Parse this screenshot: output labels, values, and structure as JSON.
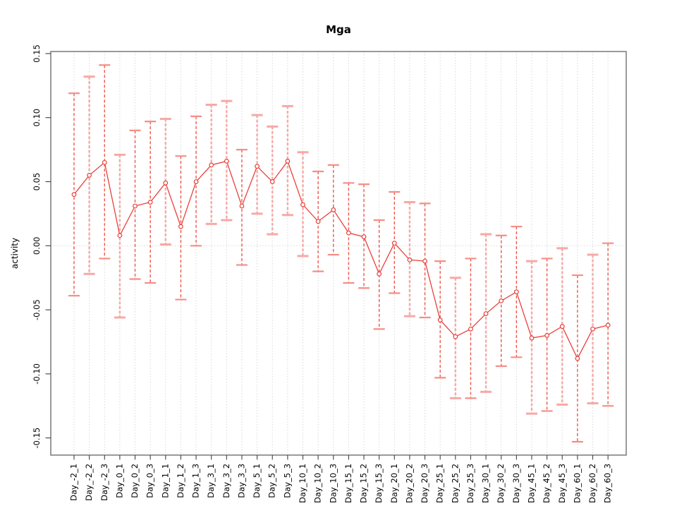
{
  "page": {
    "background": "#ffffff"
  },
  "chart_data": {
    "type": "line",
    "title": "Mga",
    "xlabel": "",
    "ylabel": "activity",
    "ylim": [
      -0.165,
      0.152
    ],
    "yticks": [
      0.15,
      0.1,
      0.05,
      0.0,
      -0.05,
      -0.1,
      -0.15
    ],
    "grid": "light dotted vertical gridline at every category; light dotted horizontal line at y=0",
    "legend": "none",
    "marker": "open-circle",
    "categories": [
      "Day_-2_1",
      "Day_-2_2",
      "Day_-2_3",
      "Day_0_1",
      "Day_0_2",
      "Day_0_3",
      "Day_1_1",
      "Day_1_2",
      "Day_1_3",
      "Day_3_1",
      "Day_3_2",
      "Day_3_3",
      "Day_5_1",
      "Day_5_2",
      "Day_5_3",
      "Day_10_1",
      "Day_10_2",
      "Day_10_3",
      "Day_15_1",
      "Day_15_2",
      "Day_15_3",
      "Day_20_1",
      "Day_20_2",
      "Day_20_3",
      "Day_25_1",
      "Day_25_2",
      "Day_25_3",
      "Day_30_1",
      "Day_30_2",
      "Day_30_3",
      "Day_45_1",
      "Day_45_2",
      "Day_45_3",
      "Day_60_1",
      "Day_60_2",
      "Day_60_3"
    ],
    "series": [
      {
        "name": "activity",
        "values": [
          0.04,
          0.055,
          0.065,
          0.008,
          0.031,
          0.034,
          0.049,
          0.015,
          0.05,
          0.063,
          0.066,
          0.031,
          0.062,
          0.05,
          0.066,
          0.032,
          0.019,
          0.028,
          0.01,
          0.007,
          -0.022,
          0.002,
          -0.011,
          -0.012,
          -0.058,
          -0.071,
          -0.065,
          -0.053,
          -0.043,
          -0.036,
          -0.072,
          -0.07,
          -0.063,
          -0.088,
          -0.065,
          -0.062
        ],
        "upper": [
          0.119,
          0.132,
          0.141,
          0.071,
          0.09,
          0.097,
          0.099,
          0.07,
          0.101,
          0.11,
          0.113,
          0.075,
          0.102,
          0.093,
          0.109,
          0.073,
          0.058,
          0.063,
          0.049,
          0.048,
          0.02,
          0.042,
          0.034,
          0.033,
          -0.012,
          -0.025,
          -0.01,
          0.009,
          0.008,
          0.015,
          -0.012,
          -0.01,
          -0.002,
          -0.023,
          -0.007,
          0.002
        ],
        "lower": [
          -0.039,
          -0.022,
          -0.01,
          -0.056,
          -0.026,
          -0.029,
          0.001,
          -0.042,
          0.0,
          0.017,
          0.02,
          -0.015,
          0.025,
          0.009,
          0.024,
          -0.008,
          -0.02,
          -0.007,
          -0.029,
          -0.033,
          -0.065,
          -0.037,
          -0.055,
          -0.056,
          -0.103,
          -0.119,
          -0.119,
          -0.114,
          -0.094,
          -0.087,
          -0.131,
          -0.129,
          -0.124,
          -0.153,
          -0.123,
          -0.125
        ]
      }
    ],
    "error_bar_variants": [
      "dark",
      "pale",
      "dark",
      "pale",
      "dark",
      "dark",
      "pale",
      "dark",
      "dark",
      "pale",
      "pale",
      "dark",
      "pale",
      "pale",
      "pale",
      "pale",
      "dark",
      "dark",
      "dark",
      "dark",
      "dark",
      "dark",
      "pale",
      "dark",
      "dark",
      "pale",
      "dark",
      "pale",
      "dark",
      "dark",
      "pale",
      "dark",
      "pale",
      "dark",
      "pale",
      "dark"
    ],
    "colors": {
      "series": "#e8413c",
      "error_dark": "#f0554a",
      "error_pale": "#f7a9a6",
      "error_cap": "#f58e86",
      "grid": "#d8d8d8",
      "zero_line": "#d8d8d8",
      "box": "#808080",
      "tick": "#404040",
      "text": "#000000"
    }
  }
}
